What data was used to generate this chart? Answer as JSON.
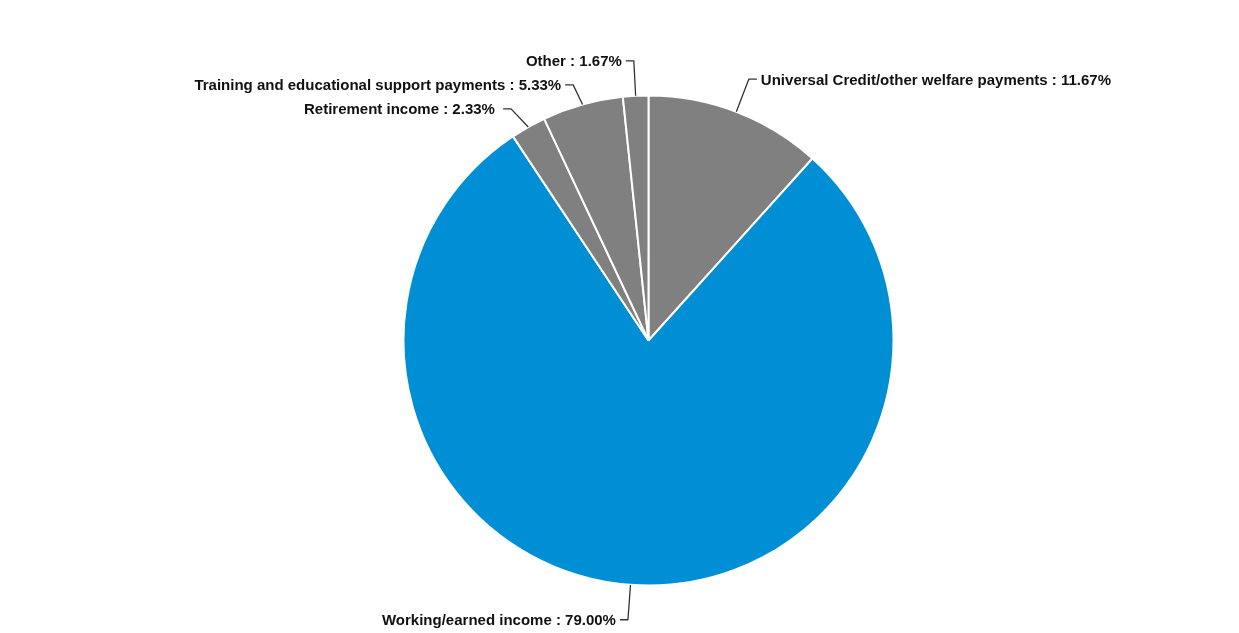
{
  "chart_data": {
    "type": "pie",
    "categories": [
      "Universal Credit/other welfare payments",
      "Working/earned income",
      "Retirement income ",
      "Training and educational support payments",
      "Other"
    ],
    "values": [
      11.67,
      79.0,
      2.33,
      5.33,
      1.67
    ],
    "value_labels": [
      "11.67%",
      "79.00%",
      "2.33%",
      "5.33%",
      "1.67%"
    ],
    "colors": [
      "#808080",
      "#008fd5",
      "#808080",
      "#808080",
      "#808080"
    ]
  }
}
